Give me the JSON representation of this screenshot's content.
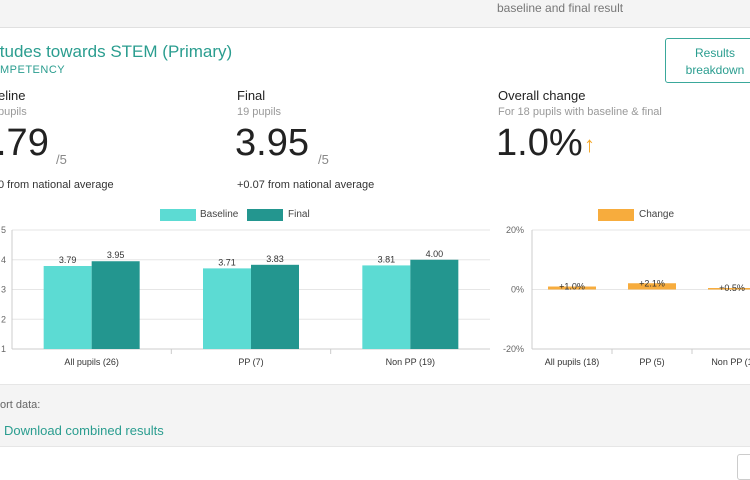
{
  "topbar": {
    "text": "baseline and final result"
  },
  "card": {
    "title": "itudes towards STEM (Primary)",
    "subtitle": "MPETENCY",
    "results_button": "Results breakdown"
  },
  "stats": {
    "baseline": {
      "label": "eline",
      "sub": "pupils",
      "value": ".79",
      "suffix": "/5",
      "note": "0 from national average"
    },
    "final": {
      "label": "Final",
      "sub": "19 pupils",
      "value": "3.95",
      "suffix": "/5",
      "note": "+0.07 from national average"
    },
    "change": {
      "label": "Overall change",
      "sub": "For 18 pupils with baseline & final",
      "value": "1.0%",
      "arrow": "up-arrow-icon"
    }
  },
  "colors": {
    "baseline": "#5cdbd3",
    "final": "#23968f",
    "change": "#f7ac3d",
    "accent": "#2a9d8f"
  },
  "chart_data": [
    {
      "type": "bar",
      "categories": [
        "All pupils (26)",
        "PP (7)",
        "Non PP (19)"
      ],
      "series": [
        {
          "name": "Baseline",
          "values": [
            3.79,
            3.71,
            3.81
          ],
          "labels": [
            "3.79",
            "3.71",
            "3.81"
          ]
        },
        {
          "name": "Final",
          "values": [
            3.95,
            3.83,
            4.0
          ],
          "labels": [
            "3.95",
            "3.83",
            "4.00"
          ]
        }
      ],
      "yticks": [
        "5",
        "4",
        "3",
        "2",
        "1"
      ],
      "ylim": [
        1,
        5
      ],
      "legend": "top-center"
    },
    {
      "type": "bar",
      "categories": [
        "All pupils (18)",
        "PP (5)",
        "Non PP (1"
      ],
      "series": [
        {
          "name": "Change",
          "values": [
            1.0,
            2.1,
            0.5
          ],
          "labels": [
            "+1.0%",
            "+2.1%",
            "+0.5%"
          ]
        }
      ],
      "yticks": [
        "20%",
        "0%",
        "-20%"
      ],
      "ylim": [
        -20,
        20
      ],
      "legend": "top-center"
    }
  ],
  "export": {
    "label": "ort data:",
    "download": "Download combined results"
  }
}
